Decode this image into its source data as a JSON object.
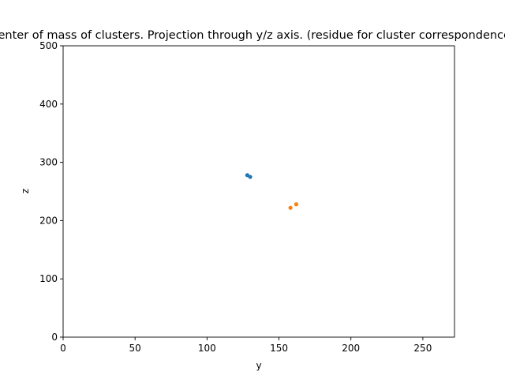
{
  "chart_data": {
    "type": "scatter",
    "title": "Center of mass of clusters. Projection through y/z axis. (residue for cluster correspondence)",
    "xlabel": "y",
    "ylabel": "z",
    "xlim": [
      0,
      272
    ],
    "ylim": [
      0,
      500
    ],
    "xticks": [
      0,
      50,
      100,
      150,
      200,
      250
    ],
    "yticks": [
      0,
      100,
      200,
      300,
      400,
      500
    ],
    "grid": false,
    "series": [
      {
        "color": "#1f77b4",
        "points": [
          {
            "x": 128,
            "y": 278
          },
          {
            "x": 130,
            "y": 275
          }
        ]
      },
      {
        "color": "#ff7f0e",
        "points": [
          {
            "x": 158,
            "y": 222
          },
          {
            "x": 162,
            "y": 228
          }
        ]
      }
    ]
  }
}
